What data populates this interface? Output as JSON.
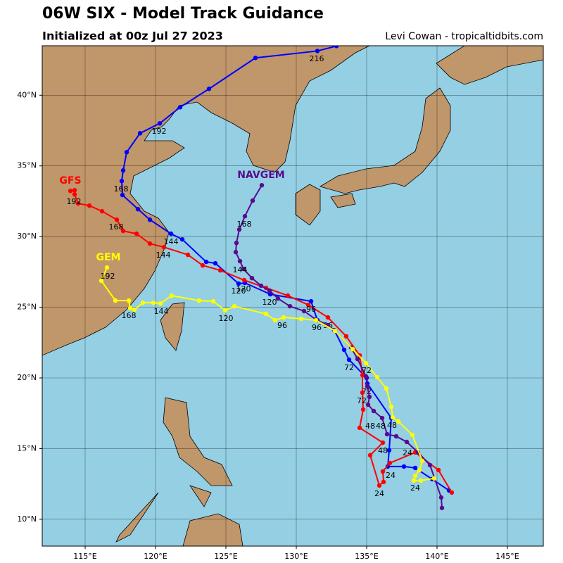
{
  "map": {
    "title": "06W SIX - Model Track Guidance",
    "subtitle": "Initialized at 00z Jul 27 2023",
    "credit": "Levi Cowan - tropicaltidbits.com",
    "lon_range": [
      111.95,
      147.55
    ],
    "lat_range": [
      8.1,
      43.5
    ],
    "lon_ticks": [
      {
        "value": 115,
        "label": "115°E"
      },
      {
        "value": 120,
        "label": "120°E"
      },
      {
        "value": 125,
        "label": "125°E"
      },
      {
        "value": 130,
        "label": "130°E"
      },
      {
        "value": 135,
        "label": "135°E"
      },
      {
        "value": 140,
        "label": "140°E"
      },
      {
        "value": 145,
        "label": "145°E"
      }
    ],
    "lat_ticks": [
      {
        "value": 10,
        "label": "10°N"
      },
      {
        "value": 15,
        "label": "15°N"
      },
      {
        "value": 20,
        "label": "20°N"
      },
      {
        "value": 25,
        "label": "25°N"
      },
      {
        "value": 30,
        "label": "30°N"
      },
      {
        "value": 35,
        "label": "35°N"
      },
      {
        "value": 40,
        "label": "40°N"
      }
    ],
    "tracks": [
      {
        "color": "#0000ff",
        "points": [
          [
            140.85,
            12.04
          ],
          [
            139.65,
            12.84
          ],
          [
            138.45,
            13.63
          ],
          [
            137.65,
            13.73
          ],
          [
            136.5,
            13.73
          ],
          [
            136.6,
            14.88
          ],
          [
            136.75,
            17.16
          ],
          [
            135.05,
            19.6
          ],
          [
            135.0,
            20.0
          ],
          [
            133.75,
            21.29
          ],
          [
            133.4,
            21.99
          ],
          [
            132.7,
            23.38
          ],
          [
            131.5,
            24.08
          ],
          [
            131.05,
            25.42
          ],
          [
            128.15,
            25.92
          ],
          [
            126.35,
            26.72
          ],
          [
            125.9,
            26.67
          ],
          [
            124.25,
            28.11
          ],
          [
            123.6,
            28.21
          ],
          [
            121.9,
            29.8
          ],
          [
            121.1,
            30.2
          ],
          [
            119.6,
            31.19
          ],
          [
            118.75,
            31.94
          ],
          [
            117.65,
            32.94
          ],
          [
            117.6,
            33.93
          ],
          [
            117.7,
            34.68
          ],
          [
            117.95,
            35.97
          ],
          [
            118.9,
            37.31
          ],
          [
            120.3,
            38.01
          ],
          [
            121.75,
            39.15
          ],
          [
            123.8,
            40.45
          ],
          [
            127.1,
            42.64
          ],
          [
            131.5,
            43.13
          ],
          [
            132.85,
            43.48
          ]
        ],
        "hour_labels": [
          "24",
          "48",
          "72",
          "96",
          "120",
          "144",
          "168",
          "192",
          "216"
        ]
      },
      {
        "name": "GFS",
        "color": "#ff0000",
        "points": [
          [
            141.05,
            11.89
          ],
          [
            140.1,
            13.48
          ],
          [
            138.45,
            14.73
          ],
          [
            136.65,
            13.98
          ],
          [
            136.15,
            13.38
          ],
          [
            136.2,
            12.64
          ],
          [
            135.9,
            12.39
          ],
          [
            135.25,
            14.53
          ],
          [
            136.15,
            15.42
          ],
          [
            134.5,
            16.47
          ],
          [
            134.75,
            17.76
          ],
          [
            134.7,
            18.96
          ],
          [
            134.7,
            20.2
          ],
          [
            134.5,
            21.59
          ],
          [
            133.55,
            22.94
          ],
          [
            132.25,
            24.28
          ],
          [
            130.85,
            25.17
          ],
          [
            129.4,
            25.82
          ],
          [
            127.85,
            26.37
          ],
          [
            126.3,
            26.92
          ],
          [
            124.6,
            27.61
          ],
          [
            123.35,
            27.96
          ],
          [
            122.3,
            28.71
          ],
          [
            120.6,
            29.25
          ],
          [
            119.6,
            29.5
          ],
          [
            118.65,
            30.2
          ],
          [
            117.7,
            30.4
          ],
          [
            117.25,
            31.19
          ],
          [
            116.2,
            31.79
          ],
          [
            115.3,
            32.19
          ],
          [
            114.5,
            32.34
          ],
          [
            114.25,
            32.99
          ],
          [
            114.25,
            33.28
          ],
          [
            113.95,
            33.23
          ]
        ],
        "hour_labels": [
          "24",
          "48",
          "72",
          "96",
          "120",
          "144",
          "168",
          "192"
        ]
      },
      {
        "name": "NAVGEM",
        "color": "#5a0a8c",
        "points": [
          [
            140.35,
            10.8
          ],
          [
            140.3,
            11.54
          ],
          [
            139.5,
            13.83
          ],
          [
            138.65,
            14.73
          ],
          [
            137.85,
            15.47
          ],
          [
            137.1,
            15.87
          ],
          [
            136.45,
            16.02
          ],
          [
            136.1,
            17.16
          ],
          [
            135.5,
            17.66
          ],
          [
            135.1,
            18.11
          ],
          [
            135.2,
            18.66
          ],
          [
            135.05,
            19.4
          ],
          [
            134.95,
            20.1
          ],
          [
            134.35,
            21.34
          ],
          [
            133.9,
            22.14
          ],
          [
            132.75,
            23.33
          ],
          [
            132.25,
            23.73
          ],
          [
            131.4,
            24.13
          ],
          [
            130.55,
            24.73
          ],
          [
            129.55,
            25.07
          ],
          [
            128.7,
            25.62
          ],
          [
            128.1,
            26.17
          ],
          [
            127.5,
            26.52
          ],
          [
            126.85,
            27.06
          ],
          [
            126.25,
            27.71
          ],
          [
            126.0,
            28.26
          ],
          [
            125.7,
            28.9
          ],
          [
            125.75,
            29.55
          ],
          [
            125.95,
            30.5
          ],
          [
            126.35,
            31.44
          ],
          [
            126.9,
            32.54
          ],
          [
            127.55,
            33.63
          ]
        ],
        "hour_labels": [
          "24",
          "48",
          "72",
          "96",
          "120",
          "144",
          "168"
        ]
      },
      {
        "name": "GEM",
        "color": "#ffff00",
        "points": [
          [
            139.8,
            12.89
          ],
          [
            138.85,
            12.74
          ],
          [
            138.35,
            12.74
          ],
          [
            138.45,
            13.08
          ],
          [
            138.75,
            13.48
          ],
          [
            138.95,
            14.13
          ],
          [
            138.25,
            15.97
          ],
          [
            137.25,
            16.92
          ],
          [
            136.85,
            17.21
          ],
          [
            136.75,
            17.96
          ],
          [
            136.4,
            19.25
          ],
          [
            135.75,
            20.05
          ],
          [
            134.95,
            21.04
          ],
          [
            134.0,
            22.04
          ],
          [
            132.75,
            23.33
          ],
          [
            131.4,
            24.08
          ],
          [
            130.35,
            24.18
          ],
          [
            129.1,
            24.28
          ],
          [
            128.5,
            24.08
          ],
          [
            127.85,
            24.53
          ],
          [
            125.6,
            25.07
          ],
          [
            124.95,
            24.78
          ],
          [
            124.1,
            25.42
          ],
          [
            123.1,
            25.47
          ],
          [
            121.15,
            25.82
          ],
          [
            120.35,
            25.27
          ],
          [
            119.85,
            25.32
          ],
          [
            119.1,
            25.32
          ],
          [
            118.5,
            24.83
          ],
          [
            118.2,
            24.93
          ],
          [
            118.1,
            25.47
          ],
          [
            117.15,
            25.47
          ],
          [
            116.15,
            26.87
          ],
          [
            116.55,
            27.81
          ]
        ],
        "hour_labels": [
          "24",
          "48",
          "72",
          "96",
          "120",
          "144",
          "168",
          "192"
        ]
      }
    ]
  }
}
